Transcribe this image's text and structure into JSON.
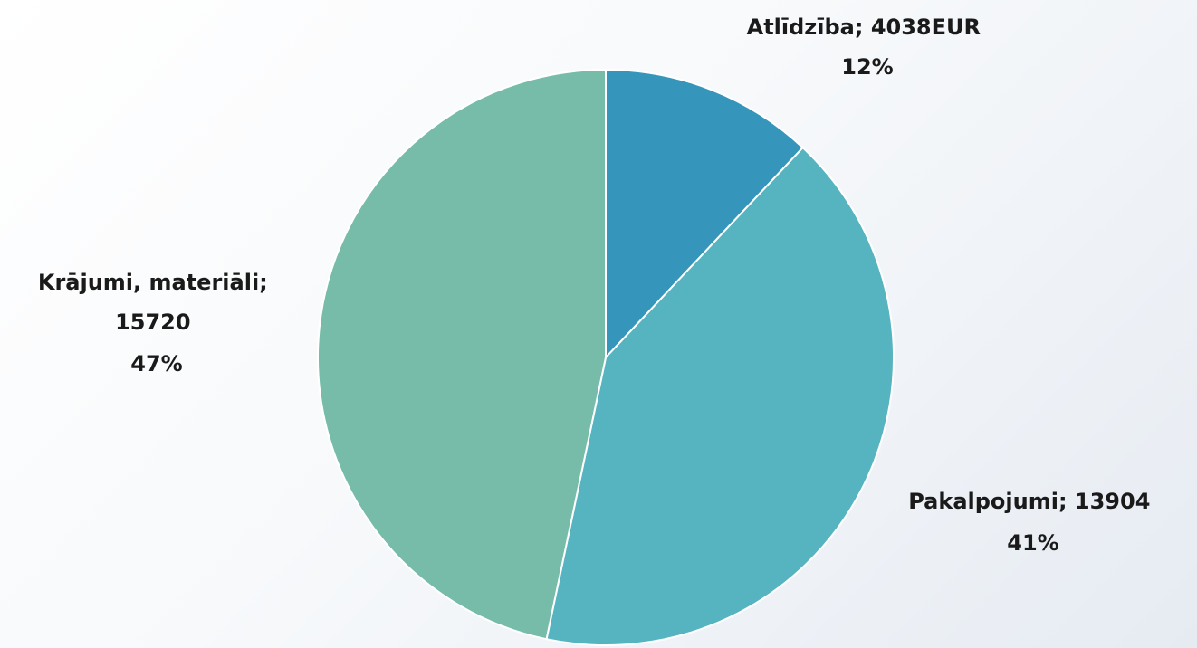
{
  "chart_data": {
    "type": "pie",
    "slices": [
      {
        "label": "Atlīdzība",
        "value": 4038,
        "value_text": "4038EUR",
        "percent": "12%",
        "color": "#3595bb"
      },
      {
        "label": "Pakalpojumi",
        "value": 13904,
        "value_text": "13904",
        "percent": "41%",
        "color": "#56b4c0"
      },
      {
        "label": "Krājumi, materiāli",
        "value": 15720,
        "value_text": "15720",
        "percent": "47%",
        "color": "#76bca8"
      }
    ],
    "labels": {
      "atlidziba": {
        "line1": "Atlīdzība; 4038EUR",
        "line2": "12%"
      },
      "pakalpojumi": {
        "line1": "Pakalpojumi; 13904",
        "line2": "41%"
      },
      "krajumi": {
        "line1": "Krājumi, materiāli;",
        "line2": "15720",
        "line3": "47%"
      }
    },
    "legend": "none"
  }
}
